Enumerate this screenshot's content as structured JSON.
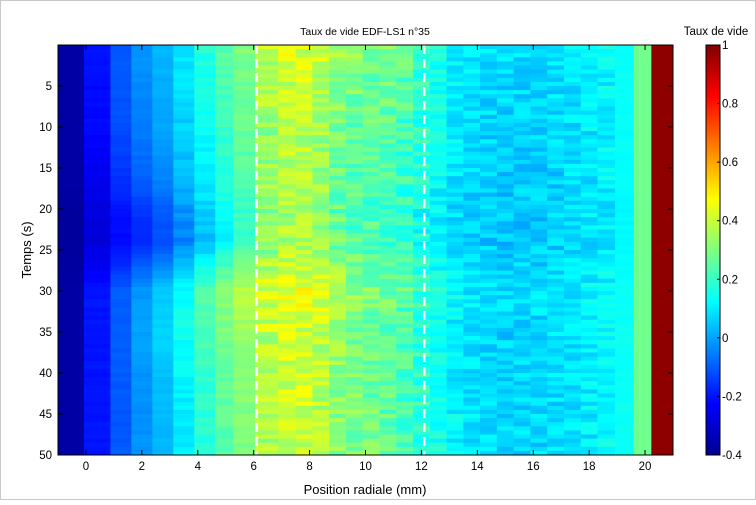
{
  "chart_data": {
    "type": "heatmap",
    "title": "Taux de vide EDF-LS1 n°35",
    "xlabel": "Position radiale (mm)",
    "ylabel": "Temps (s)",
    "xlim": [
      -1,
      21
    ],
    "ylim": [
      0,
      50
    ],
    "y_inverted": true,
    "x_ticks": [
      0,
      2,
      4,
      6,
      8,
      10,
      12,
      14,
      16,
      18,
      20
    ],
    "y_ticks": [
      5,
      10,
      15,
      20,
      25,
      30,
      35,
      40,
      45,
      50
    ],
    "colorbar": {
      "label": "Taux de vide",
      "colormap": "jet",
      "range": [
        -0.4,
        1
      ],
      "ticks": [
        -0.4,
        -0.2,
        0,
        0.2,
        0.4,
        0.6,
        0.8,
        1
      ]
    },
    "annotations": [
      {
        "type": "vline",
        "style": "dashed",
        "color": "#ffffff",
        "x": 6.1
      },
      {
        "type": "vline",
        "style": "dashed",
        "color": "#ffffff",
        "x": 12.1
      }
    ],
    "column_positions": [
      -0.65,
      0.5,
      1.25,
      2.0,
      2.75,
      3.5,
      4.25,
      5.0,
      5.55,
      6.55,
      7.2,
      7.8,
      8.4,
      9.0,
      9.6,
      10.2,
      10.8,
      11.4,
      12.0,
      12.6,
      13.2,
      13.8,
      14.4,
      15.0,
      15.6,
      16.2,
      16.8,
      17.4,
      18.0,
      18.6,
      19.25,
      19.95,
      20.5
    ],
    "profile_time_s": [
      0,
      10,
      17,
      20,
      24,
      30,
      36,
      40,
      45,
      50
    ],
    "void_fraction_profiles": [
      [
        -0.35,
        -0.2,
        -0.1,
        -0.02,
        0.03,
        0.1,
        0.18,
        0.25,
        0.3,
        0.38,
        0.42,
        0.42,
        0.4,
        0.34,
        0.32,
        0.3,
        0.28,
        0.24,
        0.2,
        0.16,
        0.12,
        0.1,
        0.09,
        0.08,
        0.08,
        0.08,
        0.09,
        0.1,
        0.11,
        0.12,
        0.14,
        0.28,
        0.98
      ],
      [
        -0.35,
        -0.22,
        -0.12,
        -0.05,
        0.0,
        0.06,
        0.13,
        0.2,
        0.26,
        0.34,
        0.38,
        0.38,
        0.35,
        0.3,
        0.27,
        0.25,
        0.25,
        0.22,
        0.18,
        0.14,
        0.1,
        0.08,
        0.07,
        0.06,
        0.06,
        0.06,
        0.07,
        0.08,
        0.1,
        0.11,
        0.13,
        0.28,
        0.98
      ],
      [
        -0.35,
        -0.25,
        -0.16,
        -0.1,
        -0.05,
        0.02,
        0.1,
        0.18,
        0.24,
        0.32,
        0.36,
        0.36,
        0.33,
        0.28,
        0.25,
        0.23,
        0.22,
        0.2,
        0.16,
        0.12,
        0.09,
        0.07,
        0.06,
        0.05,
        0.05,
        0.06,
        0.06,
        0.08,
        0.09,
        0.11,
        0.13,
        0.28,
        0.98
      ],
      [
        -0.36,
        -0.27,
        -0.2,
        -0.15,
        -0.1,
        -0.02,
        0.06,
        0.14,
        0.2,
        0.3,
        0.34,
        0.34,
        0.31,
        0.26,
        0.24,
        0.22,
        0.21,
        0.18,
        0.15,
        0.11,
        0.08,
        0.06,
        0.05,
        0.05,
        0.05,
        0.05,
        0.06,
        0.07,
        0.09,
        0.1,
        0.12,
        0.28,
        0.98
      ],
      [
        -0.36,
        -0.28,
        -0.22,
        -0.17,
        -0.12,
        -0.05,
        0.03,
        0.12,
        0.2,
        0.3,
        0.36,
        0.36,
        0.33,
        0.28,
        0.25,
        0.23,
        0.22,
        0.19,
        0.15,
        0.11,
        0.08,
        0.06,
        0.05,
        0.05,
        0.05,
        0.05,
        0.06,
        0.07,
        0.09,
        0.1,
        0.12,
        0.28,
        0.98
      ],
      [
        -0.35,
        -0.2,
        -0.1,
        -0.02,
        0.05,
        0.14,
        0.24,
        0.32,
        0.38,
        0.42,
        0.44,
        0.44,
        0.42,
        0.37,
        0.33,
        0.3,
        0.28,
        0.25,
        0.2,
        0.16,
        0.12,
        0.1,
        0.09,
        0.08,
        0.08,
        0.08,
        0.09,
        0.1,
        0.11,
        0.12,
        0.14,
        0.28,
        0.98
      ],
      [
        -0.35,
        -0.2,
        -0.1,
        0.0,
        0.07,
        0.14,
        0.22,
        0.28,
        0.33,
        0.38,
        0.4,
        0.4,
        0.37,
        0.32,
        0.28,
        0.26,
        0.25,
        0.22,
        0.18,
        0.14,
        0.1,
        0.08,
        0.07,
        0.06,
        0.06,
        0.07,
        0.08,
        0.09,
        0.1,
        0.12,
        0.14,
        0.28,
        0.98
      ],
      [
        -0.35,
        -0.2,
        -0.1,
        -0.02,
        0.04,
        0.12,
        0.2,
        0.27,
        0.32,
        0.38,
        0.41,
        0.41,
        0.38,
        0.33,
        0.3,
        0.27,
        0.25,
        0.23,
        0.19,
        0.15,
        0.11,
        0.09,
        0.08,
        0.07,
        0.07,
        0.07,
        0.08,
        0.09,
        0.1,
        0.12,
        0.14,
        0.28,
        0.98
      ],
      [
        -0.35,
        -0.2,
        -0.11,
        -0.03,
        0.03,
        0.1,
        0.18,
        0.25,
        0.3,
        0.37,
        0.4,
        0.4,
        0.37,
        0.32,
        0.3,
        0.27,
        0.26,
        0.23,
        0.19,
        0.15,
        0.11,
        0.09,
        0.08,
        0.07,
        0.07,
        0.07,
        0.08,
        0.09,
        0.1,
        0.12,
        0.14,
        0.28,
        0.98
      ],
      [
        -0.35,
        -0.2,
        -0.1,
        -0.02,
        0.03,
        0.1,
        0.17,
        0.24,
        0.3,
        0.37,
        0.4,
        0.4,
        0.37,
        0.32,
        0.3,
        0.27,
        0.26,
        0.23,
        0.19,
        0.15,
        0.11,
        0.09,
        0.08,
        0.07,
        0.07,
        0.07,
        0.08,
        0.09,
        0.1,
        0.12,
        0.14,
        0.28,
        0.98
      ]
    ]
  }
}
